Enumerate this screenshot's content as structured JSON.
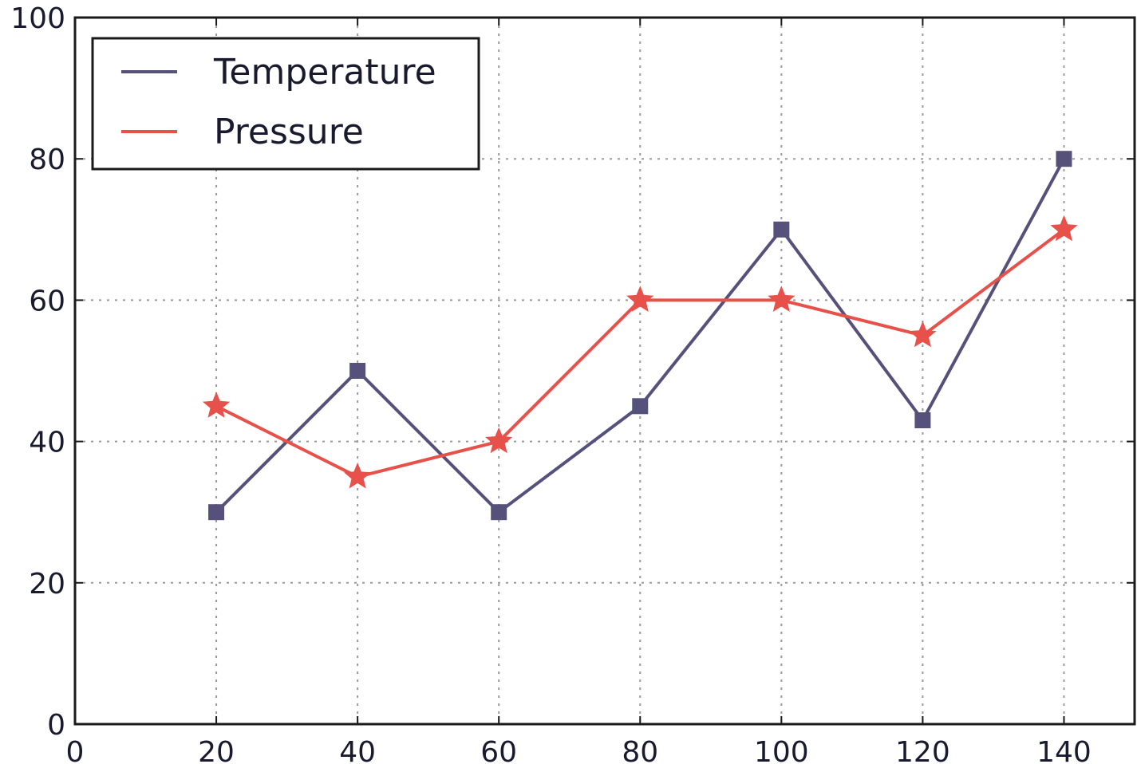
{
  "chart_data": {
    "type": "line",
    "x": [
      20,
      40,
      60,
      80,
      100,
      120,
      140
    ],
    "series": [
      {
        "name": "Temperature",
        "values": [
          30,
          50,
          30,
          45,
          70,
          43,
          80
        ],
        "color": "#56517a",
        "marker": "square"
      },
      {
        "name": "Pressure",
        "values": [
          45,
          35,
          40,
          60,
          60,
          55,
          70
        ],
        "color": "#e8504a",
        "marker": "star"
      }
    ],
    "xlim": [
      0,
      150
    ],
    "ylim": [
      0,
      100
    ],
    "xticks": [
      0,
      20,
      40,
      60,
      80,
      100,
      120,
      140
    ],
    "yticks": [
      0,
      20,
      40,
      60,
      80,
      100
    ],
    "grid": true,
    "legend_position": "top-left",
    "title": "",
    "xlabel": "",
    "ylabel": ""
  }
}
